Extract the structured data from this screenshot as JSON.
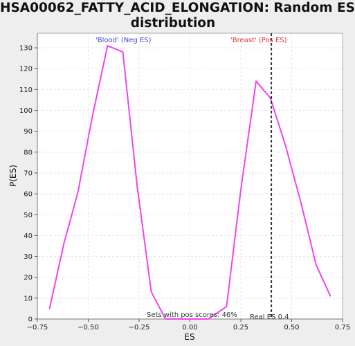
{
  "chart_data": {
    "type": "line",
    "title": "HSA00062_FATTY_ACID_ELONGATION: Random ES distribution",
    "title_line1": "HSA00062_FATTY_ACID_ELONGATION: Random ES",
    "title_line2": "distribution",
    "xlabel": "ES",
    "ylabel": "P(ES)",
    "xlim": [
      -0.75,
      0.75
    ],
    "ylim": [
      0,
      137
    ],
    "xticks": [
      -0.75,
      -0.5,
      -0.25,
      0,
      0.25,
      0.5,
      0.75
    ],
    "xtick_labels": [
      "−0.75",
      "−0.50",
      "−0.25",
      "0.00",
      "0.25",
      "0.50",
      "0.75"
    ],
    "yticks": [
      0,
      10,
      20,
      30,
      40,
      50,
      60,
      70,
      80,
      90,
      100,
      110,
      120,
      130
    ],
    "ytick_labels": [
      "0",
      "10",
      "20",
      "30",
      "40",
      "50",
      "60",
      "70",
      "80",
      "90",
      "100",
      "110",
      "120",
      "130"
    ],
    "grid": true,
    "series": [
      {
        "color": "#ee44ee",
        "x": [
          -0.69,
          -0.62,
          -0.55,
          -0.48,
          -0.405,
          -0.33,
          -0.26,
          -0.19,
          -0.12,
          -0.05,
          0.02,
          0.09,
          0.18,
          0.25,
          0.325,
          0.395,
          0.47,
          0.545,
          0.62,
          0.69
        ],
        "y": [
          5,
          36,
          61,
          97,
          131,
          128,
          64,
          13,
          0,
          0,
          0,
          0,
          6,
          62,
          114,
          106,
          83,
          56,
          26,
          11
        ]
      }
    ],
    "vline": {
      "x": 0.4,
      "style": "dashed",
      "color": "#333333"
    },
    "annotations": {
      "neg_label": "'Blood' (Neg ES)",
      "pos_label": "'Breast' (Pos ES)",
      "pos_scores": "Sets with pos scores: 46%",
      "real_es": "Real ES 0.4"
    },
    "colors": {
      "neg": "#4444cc",
      "pos": "#dd3333",
      "line": "#ee44ee"
    }
  }
}
